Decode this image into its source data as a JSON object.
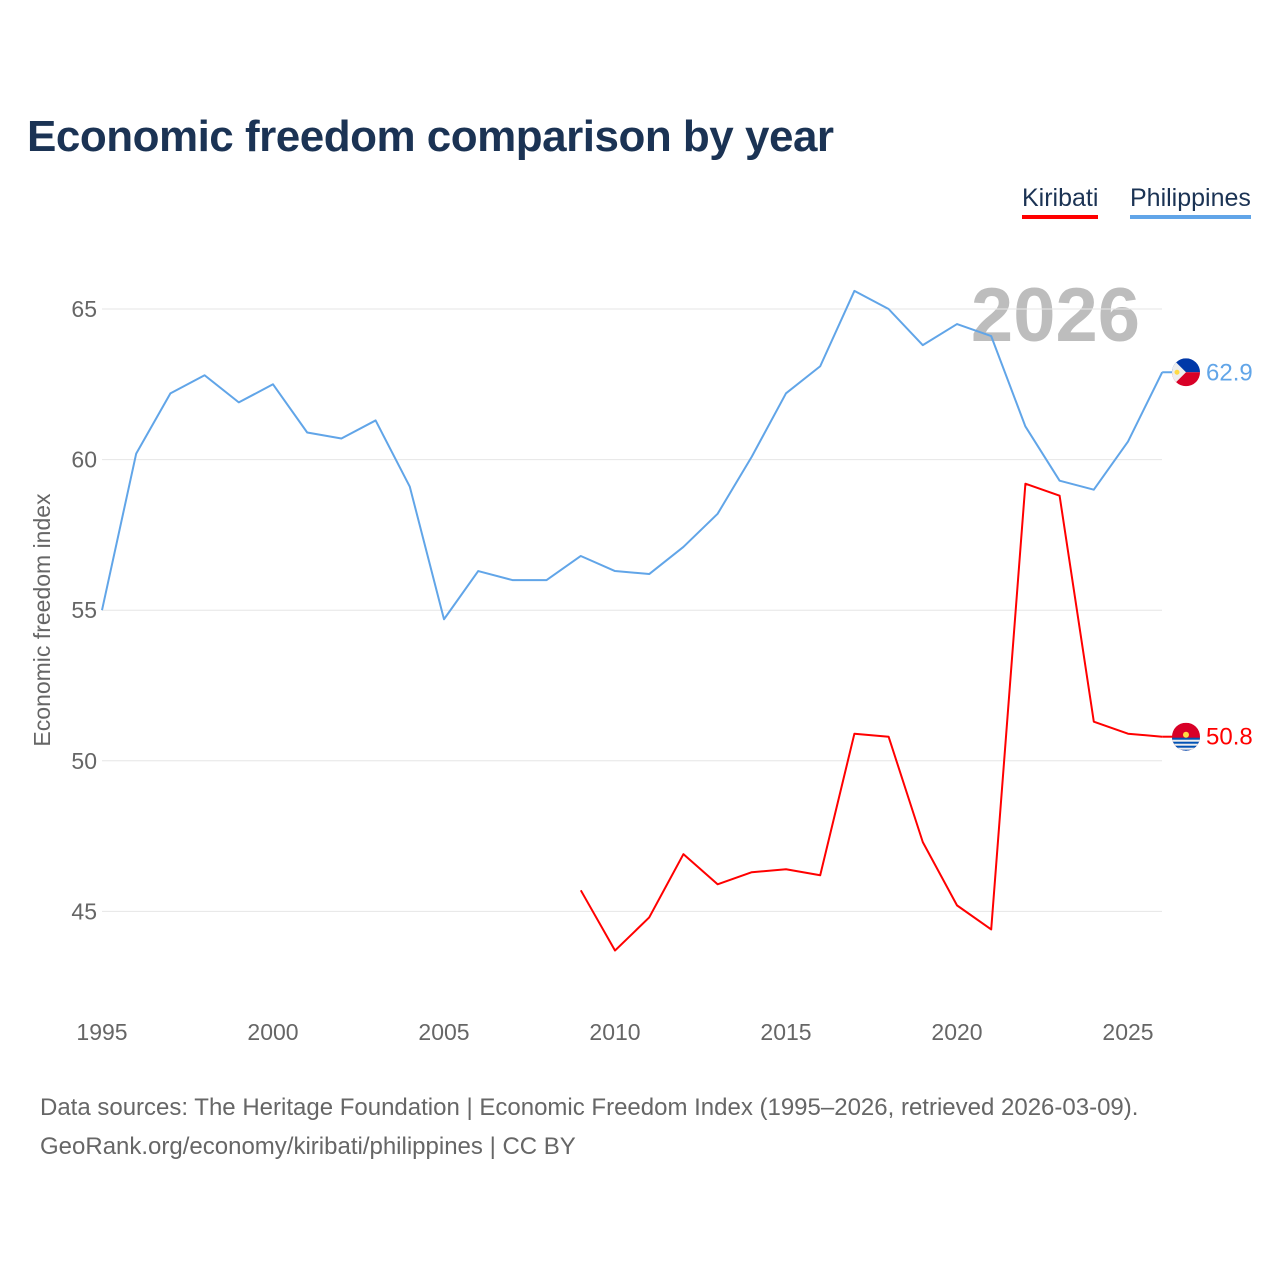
{
  "chart_data": {
    "type": "line",
    "title": "Economic freedom comparison by year",
    "xlabel": "",
    "ylabel": "Economic freedom index",
    "xlim": [
      1995,
      2026
    ],
    "ylim": [
      42,
      67
    ],
    "grid": true,
    "legend_placement": "top-right",
    "year_watermark": "2026",
    "x_ticks": [
      "1995",
      "2000",
      "2005",
      "2010",
      "2015",
      "2020",
      "2025"
    ],
    "y_ticks": [
      "45",
      "50",
      "55",
      "60",
      "65"
    ],
    "series": [
      {
        "name": "Kiribati",
        "color": "#ff0000",
        "end_label": "50.8",
        "x": [
          2009,
          2010,
          2011,
          2012,
          2013,
          2014,
          2015,
          2016,
          2017,
          2018,
          2019,
          2020,
          2021,
          2022,
          2023,
          2024,
          2025,
          2026
        ],
        "values": [
          45.7,
          43.7,
          44.8,
          46.9,
          45.9,
          46.3,
          46.4,
          46.2,
          50.9,
          50.8,
          47.3,
          45.2,
          44.4,
          59.2,
          58.8,
          51.3,
          50.9,
          50.8
        ]
      },
      {
        "name": "Philippines",
        "color": "#61a5e8",
        "end_label": "62.9",
        "x": [
          1995,
          1996,
          1997,
          1998,
          1999,
          2000,
          2001,
          2002,
          2003,
          2004,
          2005,
          2006,
          2007,
          2008,
          2009,
          2010,
          2011,
          2012,
          2013,
          2014,
          2015,
          2016,
          2017,
          2018,
          2019,
          2020,
          2021,
          2022,
          2023,
          2024,
          2025,
          2026
        ],
        "values": [
          55.0,
          60.2,
          62.2,
          62.8,
          61.9,
          62.5,
          60.9,
          60.7,
          61.3,
          59.1,
          54.7,
          56.3,
          56.0,
          56.0,
          56.8,
          56.3,
          56.2,
          57.1,
          58.2,
          60.1,
          62.2,
          63.1,
          65.6,
          65.0,
          63.8,
          64.5,
          64.1,
          61.1,
          59.3,
          59.0,
          60.6,
          62.9
        ]
      }
    ]
  },
  "footer": {
    "line1": "Data sources: The Heritage Foundation | Economic Freedom Index (1995–2026, retrieved 2026-03-09).",
    "line2": "GeoRank.org/economy/kiribati/philippines | CC BY"
  }
}
